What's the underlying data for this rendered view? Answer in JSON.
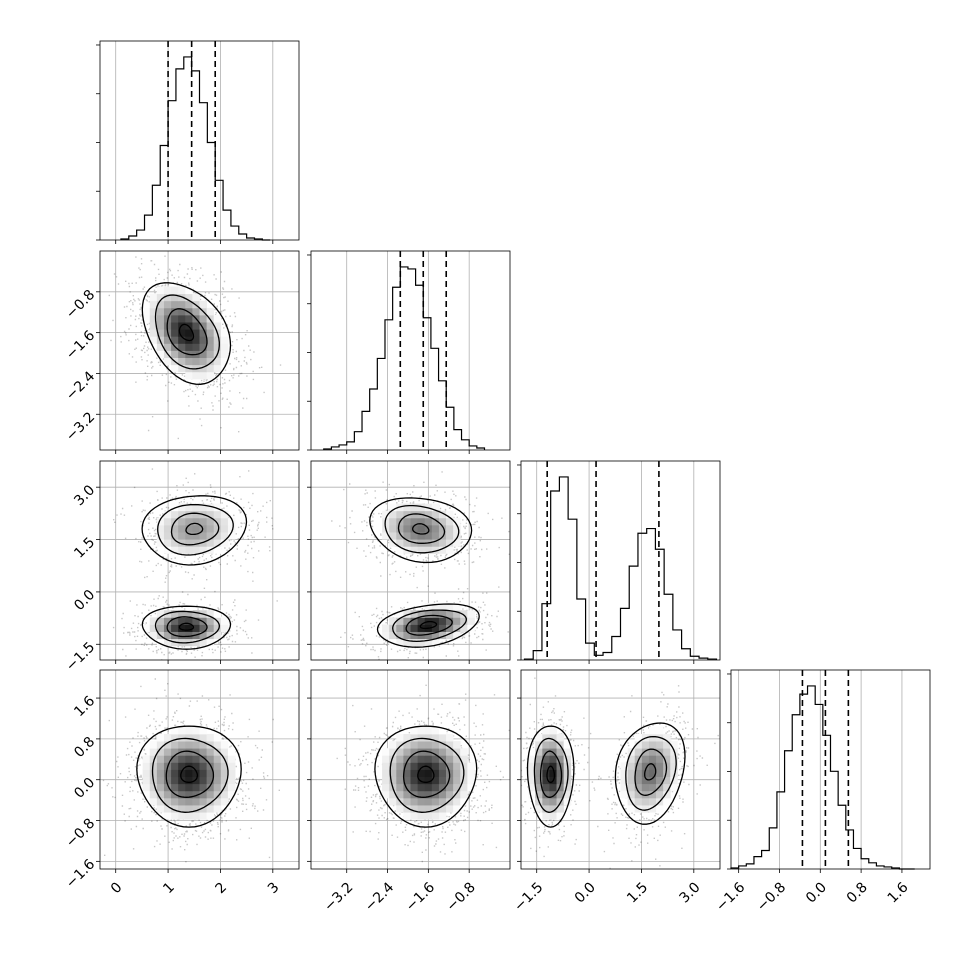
{
  "chart_data": {
    "type": "corner",
    "grid": true,
    "parameters": [
      {
        "range": [
          -0.3,
          3.5
        ],
        "ticks": [
          0,
          1,
          2,
          3
        ],
        "tick_labels": [
          "0",
          "1",
          "2",
          "3"
        ],
        "quantiles": [
          1.0,
          1.45,
          1.9
        ],
        "histogram": {
          "bin_edges": [
            0.1,
            0.25,
            0.4,
            0.55,
            0.7,
            0.85,
            1.0,
            1.15,
            1.3,
            1.45,
            1.6,
            1.75,
            1.9,
            2.05,
            2.2,
            2.35,
            2.5,
            2.65,
            2.8,
            2.95
          ],
          "counts": [
            1,
            4,
            10,
            25,
            55,
            95,
            140,
            172,
            184,
            170,
            138,
            98,
            60,
            30,
            14,
            6,
            2,
            1,
            0
          ]
        }
      },
      {
        "range": [
          -3.9,
          0.0
        ],
        "ticks": [
          -3.2,
          -2.4,
          -1.6,
          -0.8
        ],
        "tick_labels": [
          "−3.2",
          "−2.4",
          "−1.6",
          "−0.8"
        ],
        "quantiles": [
          -2.15,
          -1.7,
          -1.25
        ],
        "histogram": {
          "bin_edges": [
            -3.65,
            -3.5,
            -3.35,
            -3.2,
            -3.05,
            -2.9,
            -2.75,
            -2.6,
            -2.45,
            -2.3,
            -2.15,
            -2.0,
            -1.85,
            -1.7,
            -1.55,
            -1.4,
            -1.25,
            -1.1,
            -0.95,
            -0.8,
            -0.65,
            -0.5
          ],
          "counts": [
            1,
            3,
            5,
            8,
            18,
            38,
            60,
            90,
            128,
            160,
            180,
            178,
            162,
            130,
            100,
            68,
            42,
            20,
            10,
            4,
            2
          ]
        }
      },
      {
        "range": [
          -1.95,
          3.75
        ],
        "ticks": [
          -1.5,
          0.0,
          1.5,
          3.0
        ],
        "tick_labels": [
          "−1.5",
          "0.0",
          "1.5",
          "3.0"
        ],
        "quantiles": [
          -1.2,
          0.2,
          2.0
        ],
        "histogram": {
          "bin_edges": [
            -1.85,
            -1.6,
            -1.35,
            -1.1,
            -0.85,
            -0.6,
            -0.35,
            -0.1,
            0.15,
            0.4,
            0.65,
            0.9,
            1.15,
            1.4,
            1.65,
            1.9,
            2.15,
            2.4,
            2.65,
            2.9,
            3.15,
            3.4,
            3.65
          ],
          "counts": [
            1,
            10,
            60,
            180,
            195,
            150,
            65,
            18,
            5,
            8,
            25,
            55,
            100,
            135,
            140,
            118,
            70,
            32,
            12,
            4,
            2,
            1
          ]
        }
      },
      {
        "range": [
          -1.75,
          2.15
        ],
        "ticks": [
          -1.6,
          -0.8,
          0.0,
          0.8,
          1.6
        ],
        "tick_labels": [
          "−1.6",
          "−0.8",
          "0.0",
          "0.8",
          "1.6"
        ],
        "quantiles": [
          -0.35,
          0.1,
          0.55
        ],
        "histogram": {
          "bin_edges": [
            -1.75,
            -1.6,
            -1.45,
            -1.3,
            -1.15,
            -1.0,
            -0.85,
            -0.7,
            -0.55,
            -0.4,
            -0.25,
            -0.1,
            0.05,
            0.2,
            0.35,
            0.5,
            0.65,
            0.8,
            0.95,
            1.1,
            1.25,
            1.4,
            1.55,
            1.7,
            1.85
          ],
          "counts": [
            1,
            3,
            5,
            12,
            18,
            40,
            75,
            115,
            150,
            170,
            178,
            160,
            130,
            95,
            62,
            38,
            20,
            10,
            6,
            3,
            2,
            1,
            0,
            0
          ]
        }
      }
    ],
    "pairs": [
      {
        "i": 1,
        "j": 0,
        "clusters": [
          {
            "mx": 1.35,
            "my": -1.6,
            "sx": 0.38,
            "sy": 0.45,
            "rho": -0.35,
            "w": 1.0
          }
        ]
      },
      {
        "i": 2,
        "j": 0,
        "clusters": [
          {
            "mx": 1.5,
            "my": 1.8,
            "sx": 0.45,
            "sy": 0.45,
            "rho": 0.1,
            "w": 0.5
          },
          {
            "mx": 1.35,
            "my": -1.0,
            "sx": 0.38,
            "sy": 0.28,
            "rho": 0.0,
            "w": 0.5
          }
        ]
      },
      {
        "i": 2,
        "j": 1,
        "clusters": [
          {
            "mx": -1.75,
            "my": 1.8,
            "sx": 0.45,
            "sy": 0.42,
            "rho": -0.15,
            "w": 0.5
          },
          {
            "mx": -1.6,
            "my": -0.95,
            "sx": 0.45,
            "sy": 0.28,
            "rho": 0.3,
            "w": 0.5
          }
        ]
      },
      {
        "i": 3,
        "j": 0,
        "clusters": [
          {
            "mx": 1.4,
            "my": 0.1,
            "sx": 0.45,
            "sy": 0.45,
            "rho": 0.0,
            "w": 1.0
          }
        ]
      },
      {
        "i": 3,
        "j": 1,
        "clusters": [
          {
            "mx": -1.65,
            "my": 0.1,
            "sx": 0.45,
            "sy": 0.45,
            "rho": 0.0,
            "w": 1.0
          }
        ]
      },
      {
        "i": 3,
        "j": 2,
        "clusters": [
          {
            "mx": -1.1,
            "my": 0.1,
            "sx": 0.3,
            "sy": 0.45,
            "rho": 0.0,
            "w": 0.5
          },
          {
            "mx": 1.75,
            "my": 0.15,
            "sx": 0.45,
            "sy": 0.45,
            "rho": 0.2,
            "w": 0.5
          }
        ]
      }
    ]
  },
  "colors": {
    "line": "#000000",
    "grid": "#b0b0b0",
    "scatter": "#000000",
    "quantile": "#000000"
  }
}
